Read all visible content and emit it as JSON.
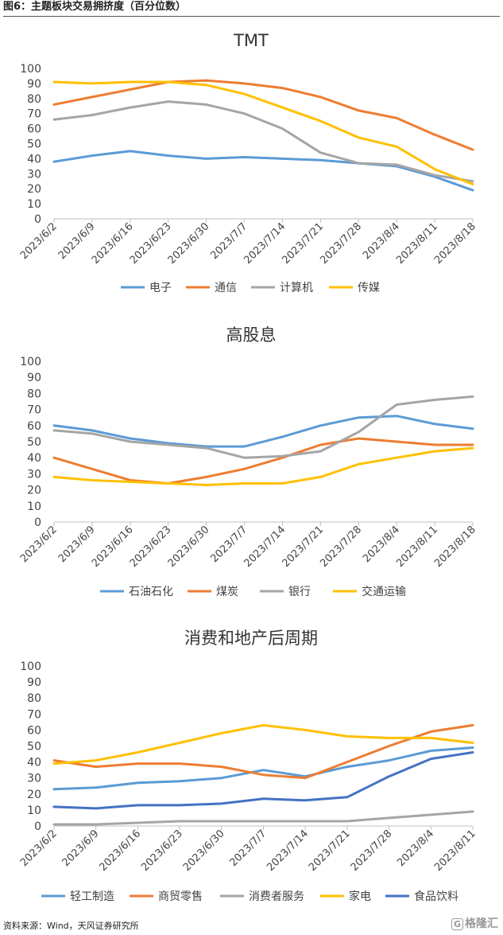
{
  "page": {
    "figure_title": "图6：主题板块交易拥挤度（百分位数）",
    "source": "资料来源：Wind，天风证券研究所",
    "watermark": "格隆汇",
    "watermark_mark": "G"
  },
  "colors": {
    "blue": "#5B9BD5",
    "orange": "#ED7D31",
    "gray": "#A5A5A5",
    "yellow": "#FFC000",
    "darkblue": "#4472C4"
  },
  "chart_data": [
    {
      "type": "line",
      "title": "TMT",
      "ylim": [
        0,
        100
      ],
      "yticks": [
        "0",
        "10",
        "20",
        "30",
        "40",
        "50",
        "60",
        "70",
        "80",
        "90",
        "100"
      ],
      "categories": [
        "2023/6/2",
        "2023/6/9",
        "2023/6/16",
        "2023/6/23",
        "2023/6/30",
        "2023/7/7",
        "2023/7/14",
        "2023/7/21",
        "2023/7/28",
        "2023/8/4",
        "2023/8/11",
        "2023/8/18"
      ],
      "legend_position": "bottom",
      "grid": false,
      "series": [
        {
          "name": "电子",
          "color": "#5B9BD5",
          "values": [
            38,
            42,
            45,
            42,
            40,
            41,
            40,
            39,
            37,
            35,
            28,
            19
          ]
        },
        {
          "name": "通信",
          "color": "#ED7D31",
          "values": [
            76,
            81,
            86,
            91,
            92,
            90,
            87,
            81,
            72,
            67,
            56,
            46
          ]
        },
        {
          "name": "计算机",
          "color": "#A5A5A5",
          "values": [
            66,
            69,
            74,
            78,
            76,
            70,
            60,
            44,
            37,
            36,
            29,
            25
          ]
        },
        {
          "name": "传媒",
          "color": "#FFC000",
          "values": [
            91,
            90,
            91,
            91,
            89,
            83,
            74,
            65,
            54,
            48,
            33,
            23
          ]
        }
      ]
    },
    {
      "type": "line",
      "title": "高股息",
      "ylim": [
        0,
        100
      ],
      "yticks": [
        "0",
        "10",
        "20",
        "30",
        "40",
        "50",
        "60",
        "70",
        "80",
        "90",
        "100"
      ],
      "categories": [
        "2023/6/2",
        "2023/6/9",
        "2023/6/16",
        "2023/6/23",
        "2023/6/30",
        "2023/7/7",
        "2023/7/14",
        "2023/7/21",
        "2023/7/28",
        "2023/8/4",
        "2023/8/11",
        "2023/8/18"
      ],
      "legend_position": "bottom",
      "grid": false,
      "series": [
        {
          "name": "石油石化",
          "color": "#5B9BD5",
          "values": [
            60,
            57,
            52,
            49,
            47,
            47,
            53,
            60,
            65,
            66,
            61,
            58
          ]
        },
        {
          "name": "煤炭",
          "color": "#ED7D31",
          "values": [
            40,
            33,
            26,
            24,
            28,
            33,
            40,
            48,
            52,
            50,
            48,
            48
          ]
        },
        {
          "name": "银行",
          "color": "#A5A5A5",
          "values": [
            57,
            55,
            50,
            48,
            46,
            40,
            41,
            44,
            56,
            73,
            76,
            78
          ]
        },
        {
          "name": "交通运输",
          "color": "#FFC000",
          "values": [
            28,
            26,
            25,
            24,
            23,
            24,
            24,
            28,
            36,
            40,
            44,
            46
          ]
        }
      ]
    },
    {
      "type": "line",
      "title": "消费和地产后周期",
      "ylim": [
        0,
        100
      ],
      "yticks": [
        "0",
        "10",
        "20",
        "30",
        "40",
        "50",
        "60",
        "70",
        "80",
        "90",
        "100"
      ],
      "categories": [
        "2023/6/2",
        "2023/6/9",
        "2023/6/16",
        "2023/6/23",
        "2023/6/30",
        "2023/7/7",
        "2023/7/14",
        "2023/7/21",
        "2023/7/28",
        "2023/8/4",
        "2023/8/11"
      ],
      "legend_position": "bottom",
      "grid": false,
      "series": [
        {
          "name": "轻工制造",
          "color": "#5B9BD5",
          "values": [
            23,
            24,
            27,
            28,
            30,
            35,
            31,
            37,
            41,
            47,
            49
          ]
        },
        {
          "name": "商贸零售",
          "color": "#ED7D31",
          "values": [
            41,
            37,
            39,
            39,
            37,
            32,
            30,
            40,
            50,
            59,
            63
          ]
        },
        {
          "name": "消费者服务",
          "color": "#A5A5A5",
          "values": [
            1,
            1,
            2,
            3,
            3,
            3,
            3,
            3,
            5,
            7,
            9
          ]
        },
        {
          "name": "家电",
          "color": "#FFC000",
          "values": [
            39,
            41,
            46,
            52,
            58,
            63,
            60,
            56,
            55,
            55,
            52
          ]
        },
        {
          "name": "食品饮料",
          "color": "#4472C4",
          "values": [
            12,
            11,
            13,
            13,
            14,
            17,
            16,
            18,
            31,
            42,
            46
          ]
        }
      ]
    }
  ]
}
